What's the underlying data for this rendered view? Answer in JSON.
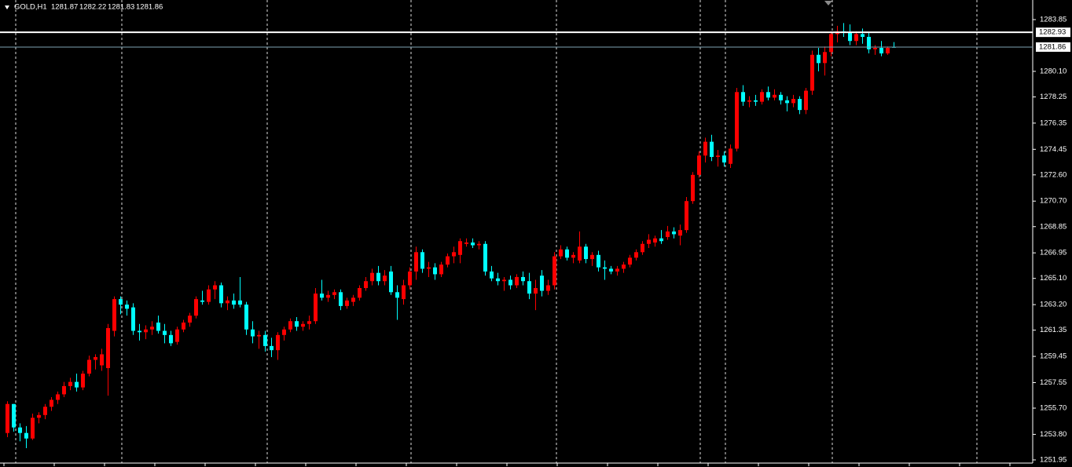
{
  "chart_data": {
    "type": "candlestick",
    "symbol": "GOLD,H1",
    "up_color": "#ff0000",
    "down_color": "#00ffff",
    "ylim": [
      1251.72,
      1285.27
    ],
    "yticks": [
      1283.85,
      {
        "value": 1280.1,
        "label": "1280.10"
      },
      1278.25,
      1276.35,
      1274.45,
      {
        "value": 1272.6,
        "label": "1272.60"
      },
      {
        "value": 1270.7,
        "label": "1270.70"
      },
      1268.85,
      1266.95,
      {
        "value": 1265.1,
        "label": "1265.10"
      },
      {
        "value": 1263.2,
        "label": "1263.20"
      },
      1261.35,
      1259.45,
      1257.55,
      {
        "value": 1255.7,
        "label": "1255.70"
      },
      {
        "value": 1253.8,
        "label": "1253.80"
      },
      1251.95
    ],
    "ask_line": 1282.93,
    "ohlc": [
      [
        1253.9,
        1256.2,
        1253.6,
        1256.0
      ],
      [
        1256.0,
        1256.0,
        1254.0,
        1254.3
      ],
      [
        1254.3,
        1254.6,
        1253.3,
        1253.9
      ],
      [
        1253.9,
        1254.4,
        1252.8,
        1253.5
      ],
      [
        1253.5,
        1255.3,
        1253.4,
        1255.0
      ],
      [
        1255.0,
        1255.4,
        1254.6,
        1255.2
      ],
      [
        1255.2,
        1256.0,
        1254.9,
        1255.8
      ],
      [
        1255.8,
        1256.5,
        1255.5,
        1256.3
      ],
      [
        1256.3,
        1256.9,
        1256.0,
        1256.7
      ],
      [
        1256.7,
        1257.6,
        1256.5,
        1257.3
      ],
      [
        1257.3,
        1257.9,
        1257.0,
        1257.6
      ],
      [
        1257.6,
        1258.2,
        1256.9,
        1257.2
      ],
      [
        1257.2,
        1258.4,
        1257.0,
        1258.2
      ],
      [
        1258.2,
        1259.5,
        1258.0,
        1259.2
      ],
      [
        1259.2,
        1259.6,
        1258.5,
        1259.4
      ],
      [
        1258.8,
        1260.0,
        1258.4,
        1259.6
      ],
      [
        1258.6,
        1261.8,
        1256.6,
        1261.5
      ],
      [
        1261.3,
        1263.8,
        1260.9,
        1263.6
      ],
      [
        1263.6,
        1263.8,
        1262.5,
        1263.2
      ],
      [
        1263.2,
        1263.5,
        1262.4,
        1262.9
      ],
      [
        1263.0,
        1263.3,
        1261.0,
        1261.3
      ],
      [
        1261.3,
        1261.8,
        1260.6,
        1261.2
      ],
      [
        1261.2,
        1261.7,
        1260.7,
        1261.4
      ],
      [
        1261.4,
        1262.0,
        1261.0,
        1261.6
      ],
      [
        1261.9,
        1262.4,
        1261.1,
        1261.3
      ],
      [
        1261.3,
        1261.8,
        1260.4,
        1261.0
      ],
      [
        1261.0,
        1261.3,
        1260.2,
        1260.4
      ],
      [
        1260.5,
        1261.6,
        1260.3,
        1261.4
      ],
      [
        1261.4,
        1262.1,
        1261.2,
        1261.9
      ],
      [
        1261.9,
        1262.6,
        1261.6,
        1262.4
      ],
      [
        1262.4,
        1263.8,
        1262.2,
        1263.6
      ],
      [
        1263.5,
        1264.2,
        1263.2,
        1263.4
      ],
      [
        1263.4,
        1264.6,
        1263.2,
        1264.3
      ],
      [
        1264.3,
        1264.9,
        1263.6,
        1264.6
      ],
      [
        1264.6,
        1264.8,
        1263.0,
        1263.3
      ],
      [
        1263.3,
        1263.8,
        1262.8,
        1263.5
      ],
      [
        1263.5,
        1264.0,
        1262.9,
        1263.2
      ],
      [
        1263.5,
        1265.2,
        1263.0,
        1263.2
      ],
      [
        1263.2,
        1263.4,
        1261.0,
        1261.4
      ],
      [
        1261.4,
        1262.0,
        1260.4,
        1260.9
      ],
      [
        1260.9,
        1261.3,
        1260.0,
        1261.0
      ],
      [
        1261.0,
        1261.3,
        1259.8,
        1260.2
      ],
      [
        1260.2,
        1260.8,
        1259.4,
        1259.9
      ],
      [
        1259.9,
        1261.2,
        1259.2,
        1261.0
      ],
      [
        1261.0,
        1261.6,
        1260.6,
        1261.4
      ],
      [
        1261.4,
        1262.2,
        1261.2,
        1262.0
      ],
      [
        1262.0,
        1262.3,
        1261.3,
        1261.6
      ],
      [
        1261.6,
        1262.0,
        1261.3,
        1261.8
      ],
      [
        1261.8,
        1262.4,
        1261.4,
        1262.0
      ],
      [
        1262.0,
        1264.4,
        1261.8,
        1264.0
      ],
      [
        1264.0,
        1265.0,
        1263.5,
        1263.7
      ],
      [
        1263.7,
        1264.2,
        1263.4,
        1263.9
      ],
      [
        1263.9,
        1264.3,
        1263.6,
        1264.1
      ],
      [
        1264.1,
        1264.3,
        1262.8,
        1263.1
      ],
      [
        1263.1,
        1263.7,
        1262.9,
        1263.5
      ],
      [
        1263.4,
        1263.9,
        1263.1,
        1263.7
      ],
      [
        1263.7,
        1264.6,
        1263.5,
        1264.4
      ],
      [
        1264.4,
        1265.2,
        1264.2,
        1264.9
      ],
      [
        1264.9,
        1265.8,
        1264.6,
        1265.5
      ],
      [
        1265.5,
        1266.0,
        1264.6,
        1264.9
      ],
      [
        1264.9,
        1265.7,
        1264.6,
        1265.3
      ],
      [
        1265.6,
        1266.0,
        1263.9,
        1264.1
      ],
      [
        1264.1,
        1264.6,
        1262.1,
        1263.7
      ],
      [
        1263.6,
        1265.0,
        1263.2,
        1264.6
      ],
      [
        1264.6,
        1265.9,
        1264.3,
        1265.6
      ],
      [
        1265.6,
        1267.4,
        1265.0,
        1267.0
      ],
      [
        1267.0,
        1267.2,
        1265.5,
        1265.8
      ],
      [
        1265.8,
        1266.3,
        1265.2,
        1265.9
      ],
      [
        1265.9,
        1266.2,
        1265.0,
        1265.4
      ],
      [
        1265.4,
        1266.3,
        1265.2,
        1266.1
      ],
      [
        1266.1,
        1266.9,
        1265.9,
        1266.7
      ],
      [
        1266.7,
        1267.4,
        1266.2,
        1267.0
      ],
      [
        1266.8,
        1268.0,
        1266.2,
        1267.8
      ],
      [
        1267.6,
        1268.0,
        1267.4,
        1267.7
      ],
      [
        1267.7,
        1268.0,
        1267.3,
        1267.5
      ],
      [
        1267.5,
        1267.8,
        1267.2,
        1267.6
      ],
      [
        1267.6,
        1267.8,
        1265.3,
        1265.6
      ],
      [
        1265.6,
        1266.0,
        1264.9,
        1265.1
      ],
      [
        1265.1,
        1265.5,
        1264.6,
        1264.9
      ],
      [
        1264.9,
        1265.2,
        1264.2,
        1265.0
      ],
      [
        1265.0,
        1265.3,
        1264.3,
        1264.6
      ],
      [
        1264.6,
        1265.4,
        1264.4,
        1265.2
      ],
      [
        1265.2,
        1265.6,
        1264.6,
        1264.9
      ],
      [
        1264.9,
        1265.5,
        1263.6,
        1264.0
      ],
      [
        1264.0,
        1265.0,
        1262.8,
        1264.4
      ],
      [
        1265.3,
        1265.7,
        1263.8,
        1264.2
      ],
      [
        1264.2,
        1265.0,
        1263.9,
        1264.6
      ],
      [
        1264.6,
        1267.0,
        1264.3,
        1266.7
      ],
      [
        1266.7,
        1267.5,
        1266.5,
        1267.2
      ],
      [
        1267.2,
        1267.4,
        1266.4,
        1266.6
      ],
      [
        1266.6,
        1267.0,
        1266.2,
        1266.8
      ],
      [
        1266.4,
        1268.5,
        1266.2,
        1267.4
      ],
      [
        1267.4,
        1267.6,
        1266.2,
        1266.5
      ],
      [
        1266.5,
        1267.0,
        1266.0,
        1266.8
      ],
      [
        1266.8,
        1267.1,
        1265.6,
        1265.9
      ],
      [
        1265.9,
        1266.4,
        1265.0,
        1265.8
      ],
      [
        1265.8,
        1266.0,
        1265.4,
        1265.6
      ],
      [
        1265.6,
        1266.0,
        1265.3,
        1265.8
      ],
      [
        1265.8,
        1266.3,
        1265.5,
        1266.1
      ],
      [
        1266.1,
        1266.8,
        1265.9,
        1266.6
      ],
      [
        1266.6,
        1267.2,
        1266.4,
        1267.0
      ],
      [
        1267.0,
        1267.8,
        1266.8,
        1267.6
      ],
      [
        1267.6,
        1268.3,
        1267.3,
        1267.9
      ],
      [
        1267.7,
        1268.2,
        1267.4,
        1268.0
      ],
      [
        1268.0,
        1268.6,
        1267.6,
        1267.8
      ],
      [
        1268.1,
        1268.9,
        1267.9,
        1268.5
      ],
      [
        1268.5,
        1268.8,
        1268.0,
        1268.3
      ],
      [
        1268.2,
        1269.0,
        1267.5,
        1268.6
      ],
      [
        1268.6,
        1271.0,
        1268.4,
        1270.7
      ],
      [
        1270.7,
        1272.8,
        1270.5,
        1272.6
      ],
      [
        1272.6,
        1274.3,
        1272.4,
        1274.0
      ],
      [
        1274.0,
        1275.3,
        1273.5,
        1275.0
      ],
      [
        1275.0,
        1275.5,
        1273.6,
        1273.9
      ],
      [
        1273.9,
        1274.4,
        1273.2,
        1274.0
      ],
      [
        1274.0,
        1274.3,
        1273.2,
        1273.5
      ],
      [
        1273.4,
        1274.8,
        1273.1,
        1274.5
      ],
      [
        1274.5,
        1278.9,
        1274.3,
        1278.6
      ],
      [
        1278.6,
        1279.1,
        1277.6,
        1277.9
      ],
      [
        1277.9,
        1278.3,
        1277.5,
        1278.0
      ],
      [
        1278.0,
        1278.4,
        1277.6,
        1277.9
      ],
      [
        1277.9,
        1278.8,
        1277.7,
        1278.6
      ],
      [
        1278.6,
        1279.0,
        1278.0,
        1278.2
      ],
      [
        1278.2,
        1278.8,
        1278.0,
        1278.4
      ],
      [
        1278.4,
        1278.6,
        1277.7,
        1278.0
      ],
      [
        1278.0,
        1278.3,
        1277.2,
        1277.8
      ],
      [
        1277.8,
        1278.4,
        1277.5,
        1278.1
      ],
      [
        1278.1,
        1278.3,
        1277.0,
        1277.3
      ],
      [
        1277.3,
        1278.9,
        1277.0,
        1278.7
      ],
      [
        1278.7,
        1281.6,
        1278.4,
        1281.3
      ],
      [
        1281.3,
        1281.8,
        1280.1,
        1280.7
      ],
      [
        1280.7,
        1281.9,
        1279.8,
        1281.5
      ],
      [
        1281.5,
        1283.0,
        1281.2,
        1282.8
      ],
      [
        1282.8,
        1283.4,
        1282.2,
        1283.0
      ],
      [
        1283.0,
        1283.6,
        1282.6,
        1282.9
      ],
      [
        1282.9,
        1283.5,
        1282.0,
        1282.3
      ],
      [
        1282.3,
        1283.0,
        1282.0,
        1282.8
      ],
      [
        1282.8,
        1283.2,
        1282.1,
        1282.6
      ],
      [
        1282.6,
        1282.9,
        1281.4,
        1281.7
      ],
      [
        1281.7,
        1282.0,
        1281.3,
        1281.8
      ],
      [
        1281.8,
        1282.3,
        1281.2,
        1281.4
      ],
      [
        1281.4,
        1281.9,
        1281.3,
        1281.8
      ],
      [
        1281.87,
        1282.22,
        1281.83,
        1281.86
      ]
    ]
  }
}
